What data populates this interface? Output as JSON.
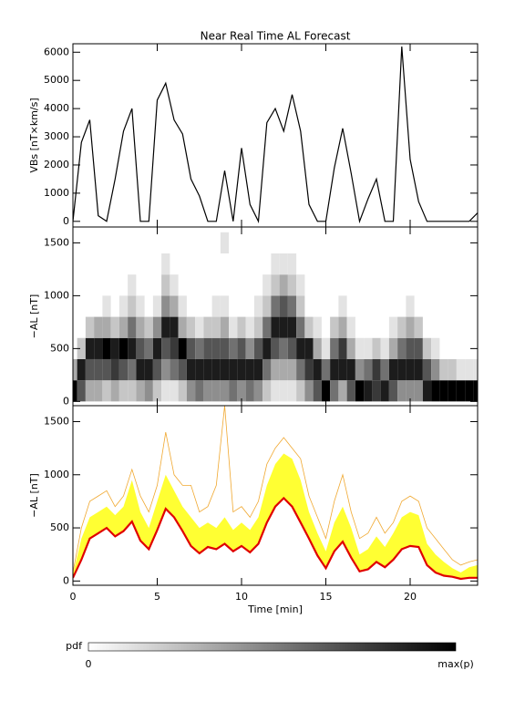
{
  "chart_data": [
    {
      "type": "line",
      "title": "Near Real Time AL Forecast",
      "ylabel": "VBs [nT×km/s]",
      "color": "#000000",
      "x": [
        0,
        0.5,
        1,
        1.5,
        2,
        2.5,
        3,
        3.5,
        4,
        4.5,
        5,
        5.5,
        6,
        6.5,
        7,
        7.5,
        8,
        8.5,
        9,
        9.5,
        10,
        10.5,
        11,
        11.5,
        12,
        12.5,
        13,
        13.5,
        14,
        14.5,
        15,
        15.5,
        16,
        16.5,
        17,
        17.5,
        18,
        18.5,
        19,
        19.5,
        20,
        20.5,
        21,
        21.5,
        22,
        22.5,
        23,
        23.5,
        24
      ],
      "values": [
        0,
        2800,
        3600,
        200,
        0,
        1500,
        3200,
        4000,
        0,
        0,
        4300,
        4900,
        3600,
        3100,
        1500,
        900,
        0,
        0,
        1800,
        0,
        2600,
        600,
        0,
        3500,
        4000,
        3200,
        4500,
        3200,
        600,
        0,
        0,
        1900,
        3300,
        1700,
        0,
        800,
        1500,
        0,
        0,
        6200,
        2200,
        700,
        0,
        0,
        0,
        0,
        0,
        0,
        300
      ],
      "xlim": [
        0,
        24
      ],
      "ylim": [
        -200,
        6300
      ],
      "yticks": [
        0,
        1000,
        2000,
        3000,
        4000,
        5000,
        6000
      ]
    },
    {
      "type": "heatmap",
      "ylabel": "−AL [nT]",
      "x": [
        0,
        0.5,
        1,
        1.5,
        2,
        2.5,
        3,
        3.5,
        4,
        4.5,
        5,
        5.5,
        6,
        6.5,
        7,
        7.5,
        8,
        8.5,
        9,
        9.5,
        10,
        10.5,
        11,
        11.5,
        12,
        12.5,
        13,
        13.5,
        14,
        14.5,
        15,
        15.5,
        16,
        16.5,
        17,
        17.5,
        18,
        18.5,
        19,
        19.5,
        20,
        20.5,
        21,
        21.5,
        22,
        22.5,
        23,
        23.5,
        24
      ],
      "y_bins": [
        0,
        200,
        400,
        600,
        800,
        1000,
        1200,
        1400,
        1600
      ],
      "p_max": 9,
      "p": [
        [
          9,
          3,
          0,
          0,
          0,
          0,
          0,
          0
        ],
        [
          6,
          8,
          2,
          0,
          0,
          0,
          0,
          0
        ],
        [
          3,
          6,
          8,
          2,
          0,
          0,
          0,
          0
        ],
        [
          3,
          6,
          8,
          3,
          0,
          0,
          0,
          0
        ],
        [
          2,
          6,
          9,
          3,
          1,
          0,
          0,
          0
        ],
        [
          3,
          7,
          8,
          2,
          0,
          0,
          0,
          0
        ],
        [
          2,
          6,
          9,
          3,
          1,
          0,
          0,
          0
        ],
        [
          2,
          5,
          8,
          5,
          2,
          1,
          0,
          0
        ],
        [
          3,
          8,
          6,
          3,
          1,
          0,
          0,
          0
        ],
        [
          4,
          8,
          5,
          2,
          0,
          0,
          0,
          0
        ],
        [
          2,
          6,
          8,
          4,
          1,
          0,
          0,
          0
        ],
        [
          1,
          4,
          6,
          8,
          4,
          2,
          1,
          0
        ],
        [
          1,
          5,
          7,
          8,
          3,
          1,
          0,
          0
        ],
        [
          2,
          6,
          9,
          3,
          1,
          0,
          0,
          0
        ],
        [
          4,
          8,
          6,
          2,
          0,
          0,
          0,
          0
        ],
        [
          5,
          8,
          5,
          1,
          0,
          0,
          0,
          0
        ],
        [
          4,
          8,
          6,
          2,
          0,
          0,
          0,
          0
        ],
        [
          4,
          8,
          6,
          2,
          1,
          0,
          0,
          0
        ],
        [
          4,
          8,
          6,
          3,
          1,
          0,
          0,
          1
        ],
        [
          5,
          8,
          5,
          1,
          0,
          0,
          0,
          0
        ],
        [
          4,
          8,
          6,
          2,
          0,
          0,
          0,
          0
        ],
        [
          5,
          8,
          4,
          1,
          0,
          0,
          0,
          0
        ],
        [
          4,
          8,
          6,
          2,
          1,
          0,
          0,
          0
        ],
        [
          2,
          5,
          8,
          5,
          2,
          1,
          0,
          0
        ],
        [
          1,
          3,
          6,
          8,
          5,
          2,
          1,
          0
        ],
        [
          1,
          3,
          5,
          8,
          6,
          3,
          1,
          0
        ],
        [
          1,
          3,
          6,
          8,
          5,
          2,
          1,
          0
        ],
        [
          2,
          5,
          8,
          5,
          2,
          1,
          0,
          0
        ],
        [
          4,
          7,
          8,
          2,
          0,
          0,
          0,
          0
        ],
        [
          6,
          8,
          3,
          1,
          0,
          0,
          0,
          0
        ],
        [
          9,
          5,
          1,
          0,
          0,
          0,
          0,
          0
        ],
        [
          5,
          8,
          5,
          2,
          0,
          0,
          0,
          0
        ],
        [
          3,
          8,
          7,
          3,
          1,
          0,
          0,
          0
        ],
        [
          6,
          8,
          3,
          1,
          0,
          0,
          0,
          0
        ],
        [
          9,
          4,
          1,
          0,
          0,
          0,
          0,
          0
        ],
        [
          8,
          5,
          1,
          0,
          0,
          0,
          0,
          0
        ],
        [
          7,
          7,
          2,
          0,
          0,
          0,
          0,
          0
        ],
        [
          8,
          5,
          1,
          0,
          0,
          0,
          0,
          0
        ],
        [
          6,
          8,
          3,
          1,
          0,
          0,
          0,
          0
        ],
        [
          4,
          8,
          5,
          2,
          0,
          0,
          0,
          0
        ],
        [
          4,
          8,
          6,
          3,
          1,
          0,
          0,
          0
        ],
        [
          4,
          8,
          6,
          2,
          0,
          0,
          0,
          0
        ],
        [
          8,
          6,
          2,
          0,
          0,
          0,
          0,
          0
        ],
        [
          9,
          4,
          1,
          0,
          0,
          0,
          0,
          0
        ],
        [
          9,
          2,
          0,
          0,
          0,
          0,
          0,
          0
        ],
        [
          9,
          2,
          0,
          0,
          0,
          0,
          0,
          0
        ],
        [
          9,
          1,
          0,
          0,
          0,
          0,
          0,
          0
        ],
        [
          9,
          1,
          0,
          0,
          0,
          0,
          0,
          0
        ],
        [
          9,
          1,
          0,
          0,
          0,
          0,
          0,
          0
        ]
      ],
      "xlim": [
        0,
        24
      ],
      "ylim": [
        -40,
        1650
      ],
      "yticks": [
        0,
        500,
        1000,
        1500
      ]
    },
    {
      "type": "band",
      "ylabel": "−AL [nT]",
      "xlabel": "Time [min]",
      "x": [
        0,
        0.5,
        1,
        1.5,
        2,
        2.5,
        3,
        3.5,
        4,
        4.5,
        5,
        5.5,
        6,
        6.5,
        7,
        7.5,
        8,
        8.5,
        9,
        9.5,
        10,
        10.5,
        11,
        11.5,
        12,
        12.5,
        13,
        13.5,
        14,
        14.5,
        15,
        15.5,
        16,
        16.5,
        17,
        17.5,
        18,
        18.5,
        19,
        19.5,
        20,
        20.5,
        21,
        21.5,
        22,
        22.5,
        23,
        23.5,
        24
      ],
      "series": [
        {
          "role": "envelope",
          "color": "#f0a830",
          "values": [
            80,
            500,
            750,
            800,
            850,
            700,
            800,
            1050,
            800,
            650,
            900,
            1400,
            1000,
            900,
            900,
            650,
            700,
            900,
            1650,
            650,
            700,
            600,
            750,
            1100,
            1250,
            1350,
            1250,
            1150,
            800,
            600,
            400,
            750,
            1000,
            650,
            400,
            450,
            600,
            450,
            550,
            750,
            800,
            750,
            500,
            400,
            300,
            200,
            150,
            180,
            200
          ]
        },
        {
          "role": "spread",
          "color": "#ffff33",
          "values": [
            60,
            400,
            600,
            650,
            700,
            620,
            700,
            950,
            650,
            500,
            750,
            1000,
            850,
            700,
            600,
            500,
            550,
            500,
            600,
            480,
            550,
            480,
            600,
            900,
            1100,
            1200,
            1150,
            950,
            650,
            450,
            280,
            550,
            700,
            500,
            250,
            300,
            420,
            320,
            450,
            600,
            650,
            620,
            350,
            250,
            180,
            120,
            80,
            130,
            150
          ]
        },
        {
          "role": "median",
          "color": "#e00000",
          "values": [
            30,
            200,
            400,
            450,
            500,
            420,
            470,
            560,
            380,
            300,
            480,
            680,
            600,
            470,
            330,
            260,
            320,
            300,
            350,
            280,
            330,
            270,
            350,
            550,
            700,
            780,
            700,
            550,
            400,
            240,
            120,
            280,
            370,
            220,
            90,
            110,
            180,
            130,
            200,
            300,
            330,
            320,
            150,
            80,
            50,
            40,
            20,
            30,
            30
          ]
        }
      ],
      "xlim": [
        0,
        24
      ],
      "ylim": [
        -40,
        1650
      ],
      "yticks": [
        0,
        500,
        1000,
        1500
      ],
      "xticks": [
        0,
        5,
        10,
        15,
        20
      ]
    }
  ],
  "colorbar": {
    "label": "pdf",
    "min_label": "0",
    "max_label": "max(p)"
  }
}
